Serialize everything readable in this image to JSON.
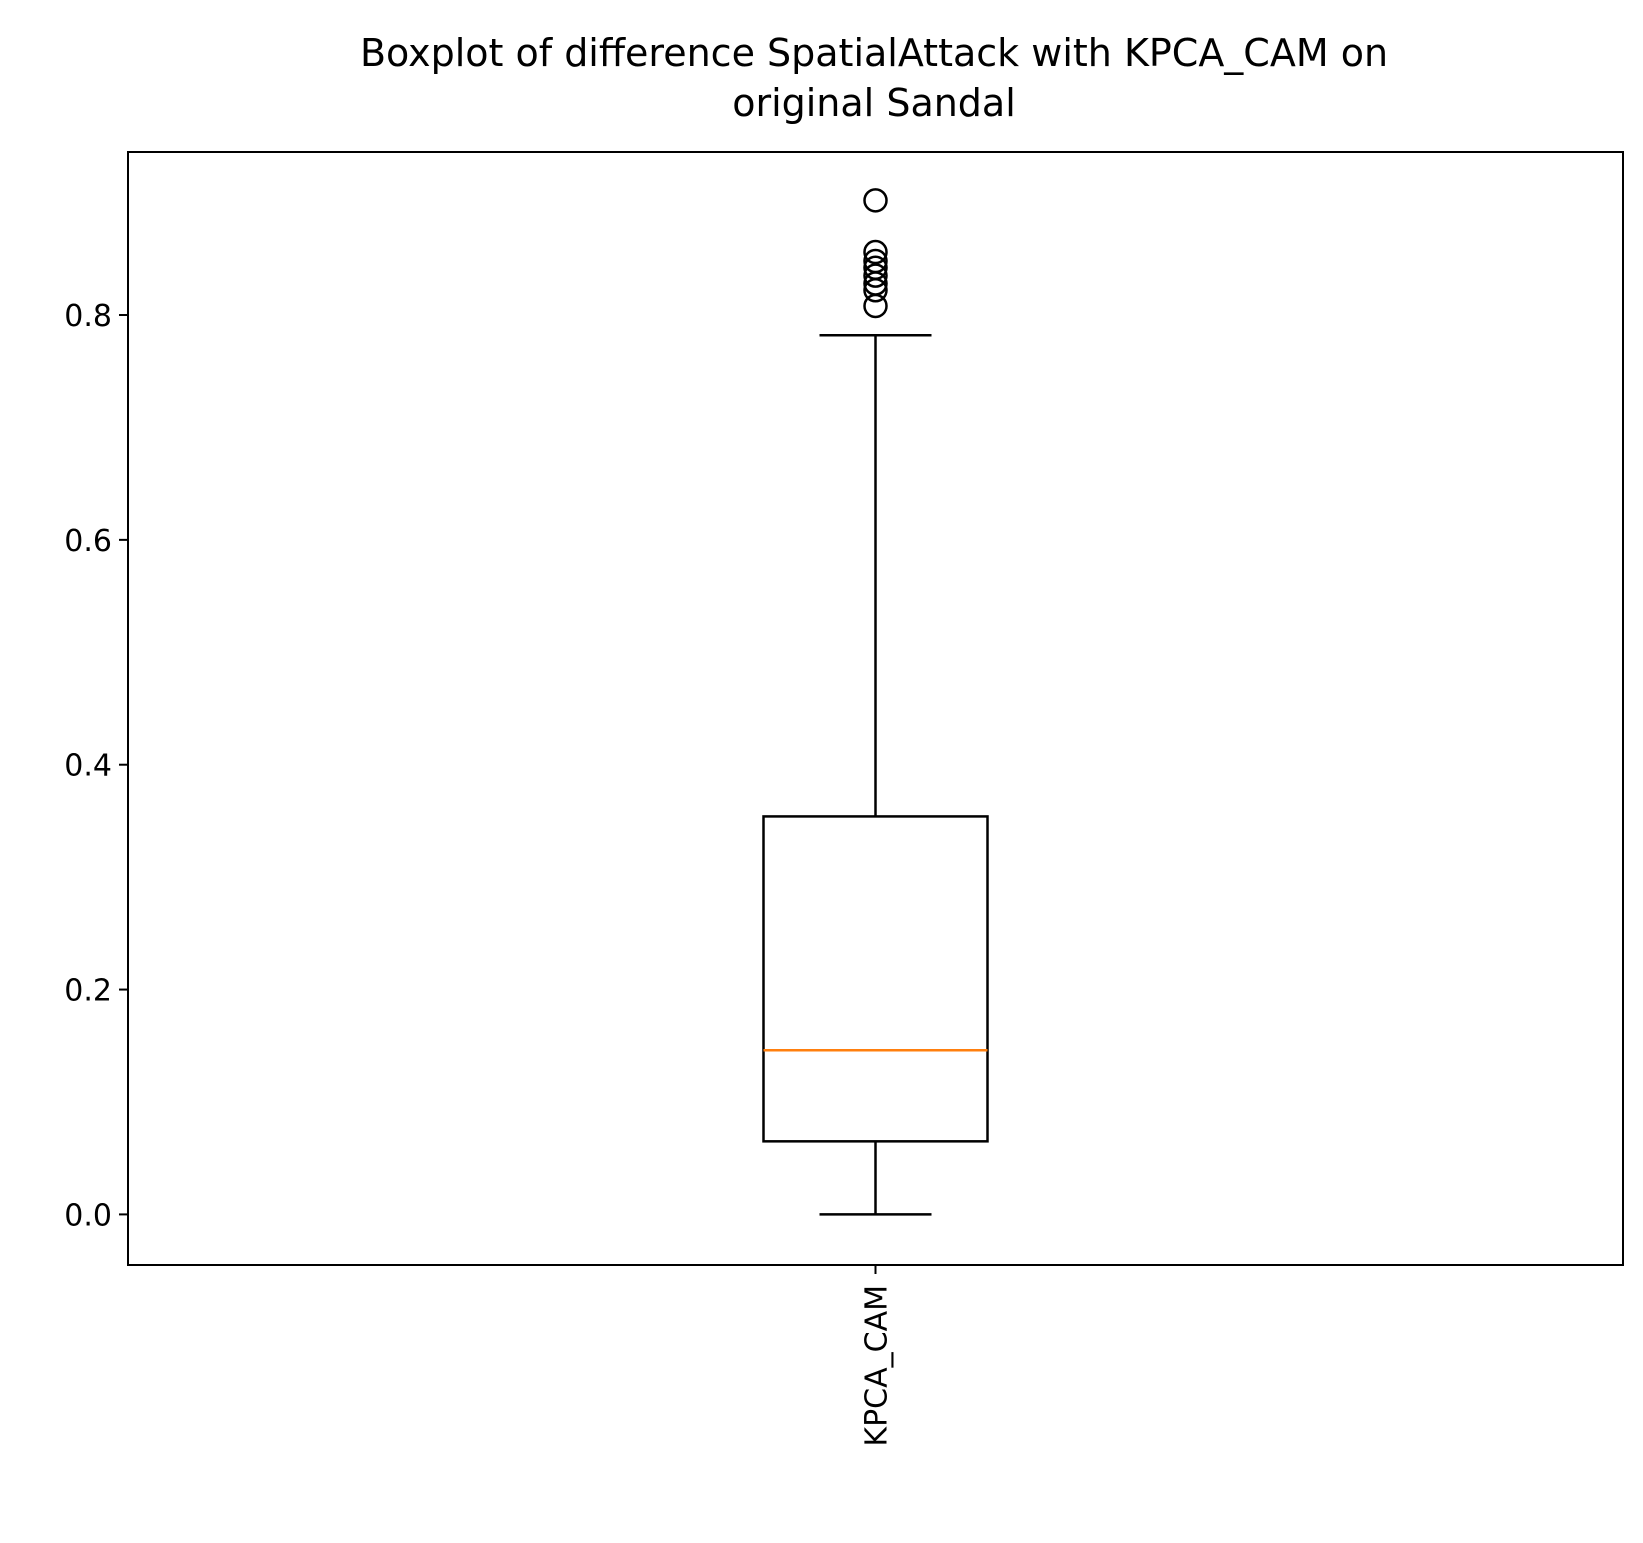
{
  "chart_data": {
    "type": "boxplot",
    "title": "Boxplot of difference SpatialAttack with KPCA_CAM on original Sandal",
    "title_lines": [
      "Boxplot of difference SpatialAttack with KPCA_CAM on",
      "original Sandal"
    ],
    "xlabel": "",
    "ylabel": "",
    "ylim": [
      -0.045,
      0.945
    ],
    "yticks": [
      0.0,
      0.2,
      0.4,
      0.6,
      0.8
    ],
    "ytick_labels": [
      "0.0",
      "0.2",
      "0.4",
      "0.6",
      "0.8"
    ],
    "categories": [
      "KPCA_CAM"
    ],
    "x_tick_rotation": "vertical",
    "grid": false,
    "legend": "none",
    "boxes": [
      {
        "label": "KPCA_CAM",
        "whisker_low": 0.0,
        "q1": 0.065,
        "median": 0.146,
        "q3": 0.354,
        "whisker_high": 0.782,
        "outliers": [
          0.808,
          0.822,
          0.828,
          0.835,
          0.842,
          0.848,
          0.856,
          0.902
        ]
      }
    ],
    "colors": {
      "box": "#000000",
      "median": "#ff7f0e",
      "outlier": "#000000"
    }
  }
}
